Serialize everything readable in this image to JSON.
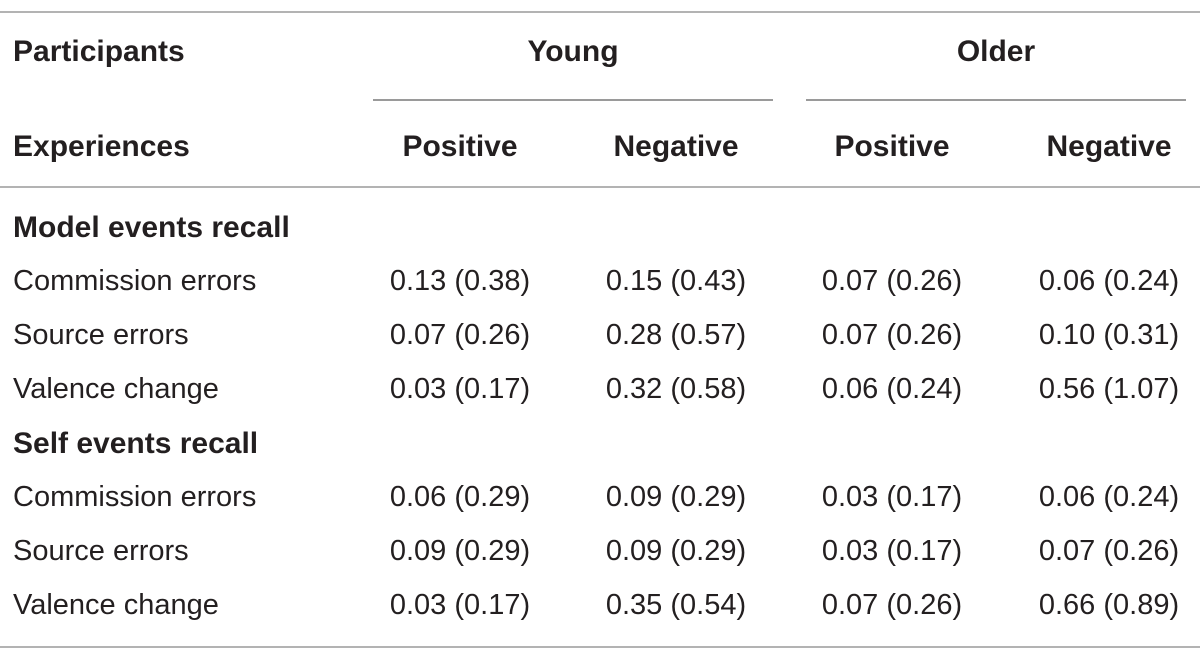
{
  "header": {
    "participants_label": "Participants",
    "experiences_label": "Experiences",
    "groups": [
      "Young",
      "Older"
    ],
    "columns": [
      "Positive",
      "Negative",
      "Positive",
      "Negative"
    ]
  },
  "sections": [
    {
      "title": "Model events recall",
      "rows": [
        {
          "label": "Commission errors",
          "values": [
            "0.13 (0.38)",
            "0.15 (0.43)",
            "0.07 (0.26)",
            "0.06 (0.24)"
          ]
        },
        {
          "label": "Source errors",
          "values": [
            "0.07 (0.26)",
            "0.28 (0.57)",
            "0.07 (0.26)",
            "0.10 (0.31)"
          ]
        },
        {
          "label": "Valence change",
          "values": [
            "0.03 (0.17)",
            "0.32 (0.58)",
            "0.06 (0.24)",
            "0.56 (1.07)"
          ]
        }
      ]
    },
    {
      "title": "Self events recall",
      "rows": [
        {
          "label": "Commission errors",
          "values": [
            "0.06 (0.29)",
            "0.09 (0.29)",
            "0.03 (0.17)",
            "0.06 (0.24)"
          ]
        },
        {
          "label": "Source errors",
          "values": [
            "0.09 (0.29)",
            "0.09 (0.29)",
            "0.03 (0.17)",
            "0.07 (0.26)"
          ]
        },
        {
          "label": "Valence change",
          "values": [
            "0.03 (0.17)",
            "0.35 (0.54)",
            "0.07 (0.26)",
            "0.66 (0.89)"
          ]
        }
      ]
    }
  ]
}
